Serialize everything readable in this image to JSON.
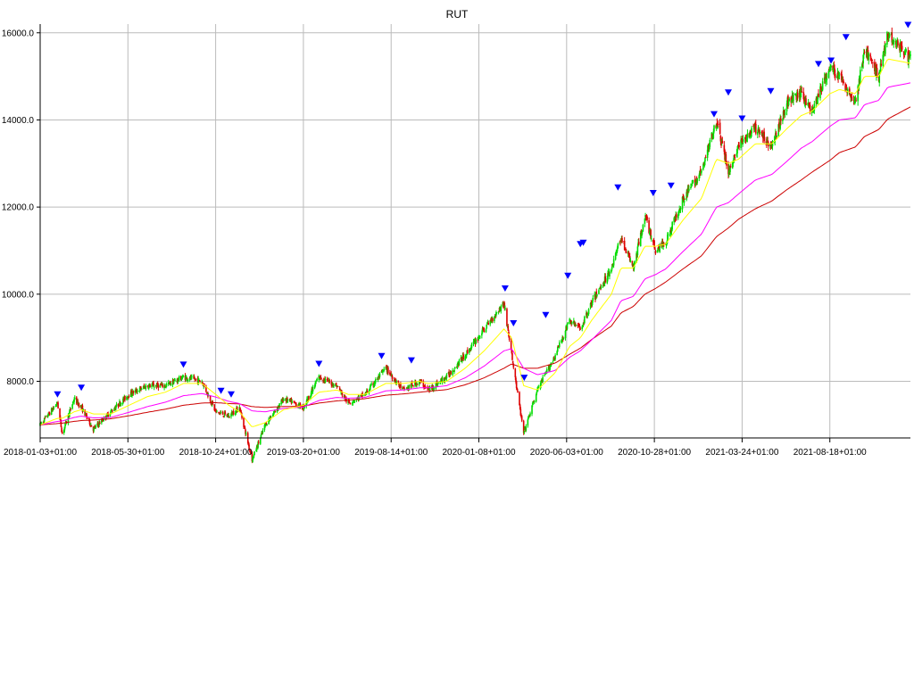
{
  "chart_data": {
    "type": "line",
    "title": "RUT",
    "xlabel": "",
    "ylabel": "",
    "ylim": [
      6700,
      16200
    ],
    "yticks": [
      8000.0,
      10000.0,
      12000.0,
      14000.0,
      16000.0
    ],
    "ytick_labels": [
      "8000.0",
      "10000.0",
      "12000.0",
      "14000.0",
      "16000.0"
    ],
    "xticks": [
      "2018-01-03+01:00",
      "2018-05-30+01:00",
      "2018-10-24+01:00",
      "2019-03-20+01:00",
      "2019-08-14+01:00",
      "2020-01-08+01:00",
      "2020-06-03+01:00",
      "2020-10-28+01:00",
      "2021-03-24+01:00",
      "2021-08-18+01:00"
    ],
    "xlim": [
      "2018-01-03",
      "2021-12-31"
    ],
    "grid": true,
    "colors": {
      "up_candle": "#00dd00",
      "down_candle": "#dd0000",
      "ma_short": "#ffff00",
      "ma_mid": "#ff00ff",
      "ma_long": "#cc0000",
      "marker": "#0000ff",
      "grid": "#bbbbbb"
    },
    "price": {
      "dates": [
        "2018-01-03",
        "2018-02-01",
        "2018-02-09",
        "2018-03-01",
        "2018-03-13",
        "2018-04-02",
        "2018-05-01",
        "2018-06-01",
        "2018-07-02",
        "2018-08-01",
        "2018-08-31",
        "2018-10-01",
        "2018-10-24",
        "2018-11-15",
        "2018-12-03",
        "2018-12-24",
        "2019-01-15",
        "2019-02-15",
        "2019-03-20",
        "2019-04-15",
        "2019-05-15",
        "2019-06-03",
        "2019-07-01",
        "2019-08-05",
        "2019-09-03",
        "2019-10-01",
        "2019-10-15",
        "2019-11-15",
        "2019-12-16",
        "2020-01-17",
        "2020-02-19",
        "2020-03-03",
        "2020-03-23",
        "2020-04-15",
        "2020-05-15",
        "2020-06-08",
        "2020-06-26",
        "2020-07-15",
        "2020-08-17",
        "2020-09-02",
        "2020-09-23",
        "2020-10-12",
        "2020-10-30",
        "2020-11-16",
        "2020-12-15",
        "2021-01-15",
        "2021-02-09",
        "2021-03-01",
        "2021-03-18",
        "2021-04-15",
        "2021-05-13",
        "2021-06-07",
        "2021-07-01",
        "2021-07-19",
        "2021-08-18",
        "2021-09-03",
        "2021-09-30",
        "2021-10-15",
        "2021-11-08",
        "2021-11-23",
        "2021-12-31"
      ],
      "close": [
        7000,
        7500,
        6800,
        7600,
        7400,
        6900,
        7300,
        7700,
        7900,
        7900,
        8100,
        8000,
        7300,
        7200,
        7400,
        6200,
        7000,
        7600,
        7400,
        8100,
        7900,
        7500,
        7700,
        8300,
        7800,
        8000,
        7800,
        8100,
        8600,
        9200,
        9800,
        8600,
        6800,
        7800,
        8600,
        9400,
        9200,
        9800,
        10600,
        11300,
        10600,
        11800,
        11000,
        11200,
        12200,
        12800,
        14000,
        12800,
        13400,
        13800,
        13400,
        14400,
        14600,
        14200,
        15200,
        15000,
        14400,
        15600,
        15000,
        16000,
        15400
      ],
      "ma_short": [
        7000,
        7150,
        7150,
        7300,
        7350,
        7250,
        7250,
        7450,
        7650,
        7750,
        7950,
        7950,
        7700,
        7450,
        7300,
        6950,
        7050,
        7350,
        7450,
        7750,
        7800,
        7700,
        7700,
        7950,
        7950,
        8000,
        7950,
        8000,
        8300,
        8700,
        9200,
        9000,
        7900,
        7800,
        8200,
        8800,
        9000,
        9400,
        10000,
        10600,
        10600,
        11100,
        11100,
        11150,
        11700,
        12200,
        13100,
        13000,
        13100,
        13450,
        13450,
        13800,
        14100,
        14200,
        14600,
        14700,
        14600,
        15000,
        15000,
        15400,
        15300
      ],
      "ma_mid": [
        7000,
        7080,
        7090,
        7170,
        7200,
        7160,
        7170,
        7290,
        7420,
        7520,
        7670,
        7720,
        7640,
        7540,
        7490,
        7320,
        7300,
        7380,
        7410,
        7560,
        7630,
        7610,
        7630,
        7780,
        7800,
        7850,
        7850,
        7900,
        8080,
        8350,
        8700,
        8750,
        8300,
        8150,
        8250,
        8550,
        8700,
        8950,
        9400,
        9850,
        9950,
        10350,
        10450,
        10580,
        10980,
        11380,
        12000,
        12100,
        12300,
        12620,
        12750,
        13050,
        13350,
        13500,
        13850,
        14000,
        14050,
        14350,
        14450,
        14750,
        14850
      ],
      "ma_long": [
        7000,
        7030,
        7040,
        7080,
        7100,
        7110,
        7140,
        7210,
        7290,
        7360,
        7450,
        7500,
        7510,
        7490,
        7480,
        7420,
        7400,
        7420,
        7430,
        7500,
        7550,
        7570,
        7600,
        7680,
        7710,
        7750,
        7770,
        7810,
        7920,
        8080,
        8300,
        8400,
        8300,
        8300,
        8420,
        8620,
        8760,
        8960,
        9270,
        9570,
        9720,
        10000,
        10130,
        10280,
        10580,
        10880,
        11320,
        11520,
        11720,
        11960,
        12140,
        12400,
        12620,
        12800,
        13070,
        13250,
        13380,
        13620,
        13780,
        14020,
        14300
      ]
    },
    "markers": [
      {
        "date": "2018-02-01",
        "value": 7700
      },
      {
        "date": "2018-03-13",
        "value": 7850
      },
      {
        "date": "2018-08-31",
        "value": 8380
      },
      {
        "date": "2018-11-02",
        "value": 7780
      },
      {
        "date": "2018-11-19",
        "value": 7700
      },
      {
        "date": "2019-04-15",
        "value": 8400
      },
      {
        "date": "2019-07-29",
        "value": 8580
      },
      {
        "date": "2019-09-17",
        "value": 8480
      },
      {
        "date": "2020-02-21",
        "value": 10130
      },
      {
        "date": "2020-03-06",
        "value": 9330
      },
      {
        "date": "2020-03-24",
        "value": 8080
      },
      {
        "date": "2020-04-29",
        "value": 9520
      },
      {
        "date": "2020-06-05",
        "value": 10420
      },
      {
        "date": "2020-06-26",
        "value": 11150
      },
      {
        "date": "2020-07-01",
        "value": 11180
      },
      {
        "date": "2020-08-28",
        "value": 12450
      },
      {
        "date": "2020-10-26",
        "value": 12320
      },
      {
        "date": "2020-11-25",
        "value": 12490
      },
      {
        "date": "2021-02-05",
        "value": 14130
      },
      {
        "date": "2021-03-01",
        "value": 14630
      },
      {
        "date": "2021-03-24",
        "value": 14030
      },
      {
        "date": "2021-05-11",
        "value": 14660
      },
      {
        "date": "2021-07-30",
        "value": 15280
      },
      {
        "date": "2021-08-20",
        "value": 15360
      },
      {
        "date": "2021-09-14",
        "value": 15900
      },
      {
        "date": "2021-12-27",
        "value": 16180
      }
    ]
  }
}
